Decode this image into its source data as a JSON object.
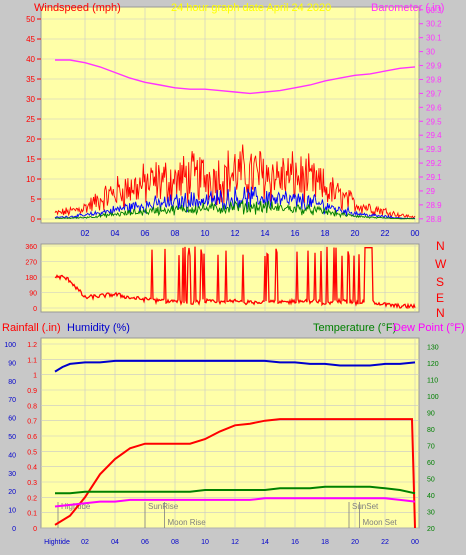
{
  "colors": {
    "background": "#c8c8c8",
    "plot_bg": "#ffffa8",
    "grid": "#c8c8c8",
    "wind": "#ff0000",
    "gust_blue": "#0000ff",
    "gust_green": "#008000",
    "barometer": "#ff33ff",
    "humidity": "#0000cc",
    "temperature": "#008000",
    "dewpoint": "#ff00ff",
    "rain": "#ff0000",
    "title": "#ffff00",
    "event": "#808080"
  },
  "header": {
    "title": "24 hour graph date  April 24 2020"
  },
  "chart_data": [
    {
      "type": "line",
      "panel": "wind-baro",
      "title": "24 hour graph date  April 24 2020",
      "ylabel_left": "Windspeed (mph)",
      "ylabel_right": "Barometer (.in)",
      "x_ticks": [
        "02",
        "04",
        "06",
        "08",
        "10",
        "12",
        "14",
        "16",
        "18",
        "20",
        "22",
        "00"
      ],
      "y_left_ticks": [
        "0",
        "5",
        "10",
        "15",
        "20",
        "25",
        "30",
        "35",
        "40",
        "45",
        "50"
      ],
      "y_left_lim": [
        0,
        50
      ],
      "y_right_ticks": [
        "28.8",
        "28.9",
        "29",
        "29.1",
        "29.2",
        "29.3",
        "29.4",
        "29.5",
        "29.6",
        "29.7",
        "29.8",
        "29.9",
        "30",
        "30.1",
        "30.2",
        "30.3"
      ],
      "y_right_lim": [
        28.77,
        30.32
      ],
      "series": [
        {
          "name": "Barometer",
          "axis": "right",
          "x": [
            0,
            1,
            2,
            3,
            4,
            5,
            6,
            7,
            8,
            9,
            10,
            11,
            12,
            13,
            14,
            15,
            16,
            17,
            18,
            19,
            20,
            21,
            22,
            23,
            24
          ],
          "values": [
            29.94,
            29.94,
            29.92,
            29.89,
            29.85,
            29.81,
            29.78,
            29.76,
            29.74,
            29.73,
            29.73,
            29.72,
            29.71,
            29.7,
            29.71,
            29.72,
            29.74,
            29.76,
            29.79,
            29.81,
            29.83,
            29.84,
            29.86,
            29.88,
            29.89
          ]
        },
        {
          "name": "Wind speed",
          "axis": "left",
          "x": [
            0,
            1,
            2,
            3,
            4,
            5,
            6,
            7,
            8,
            9,
            10,
            11,
            12,
            13,
            14,
            15,
            16,
            17,
            18,
            19,
            20,
            21,
            22,
            23,
            24
          ],
          "values": [
            1.5,
            2,
            3,
            5,
            7,
            8,
            9,
            10,
            10,
            11,
            11,
            11,
            12,
            12,
            12,
            11,
            11,
            10,
            8,
            6,
            4,
            3,
            2,
            1,
            0.5
          ]
        },
        {
          "name": "Average wind",
          "axis": "left",
          "x": [
            0,
            1,
            2,
            3,
            4,
            5,
            6,
            7,
            8,
            9,
            10,
            11,
            12,
            13,
            14,
            15,
            16,
            17,
            18,
            19,
            20,
            21,
            22,
            23,
            24
          ],
          "values": [
            0.5,
            0.8,
            1.2,
            2,
            3,
            4,
            4.5,
            5,
            5.5,
            6,
            6,
            6.5,
            7,
            7,
            7,
            6.5,
            6,
            5.5,
            4.5,
            3,
            2,
            1.2,
            0.8,
            0.3,
            0.2
          ]
        },
        {
          "name": "Min wind",
          "axis": "left",
          "x": [
            0,
            1,
            2,
            3,
            4,
            5,
            6,
            7,
            8,
            9,
            10,
            11,
            12,
            13,
            14,
            15,
            16,
            17,
            18,
            19,
            20,
            21,
            22,
            23,
            24
          ],
          "values": [
            0.2,
            0.3,
            0.5,
            1,
            1.5,
            2,
            2.5,
            3,
            3,
            3.5,
            3.5,
            3.5,
            4,
            4,
            4,
            3.5,
            3.5,
            3,
            2.5,
            1.5,
            1,
            0.5,
            0.3,
            0.1,
            0.1
          ]
        }
      ]
    },
    {
      "type": "line",
      "panel": "wind-direction",
      "y_left_ticks": [
        "0",
        "90",
        "180",
        "270",
        "360"
      ],
      "y_left_lim": [
        0,
        360
      ],
      "y_right_labels": [
        "N",
        "W",
        "S",
        "E",
        "N"
      ],
      "series": [
        {
          "name": "Wind direction",
          "x": [
            0,
            0.5,
            1,
            1.5,
            2,
            3,
            4,
            5,
            6,
            7,
            8,
            9,
            10,
            11,
            12,
            13,
            14,
            15,
            16,
            17,
            18,
            19,
            20,
            21,
            22,
            23,
            24
          ],
          "values": [
            180,
            180,
            160,
            110,
            60,
            70,
            80,
            60,
            50,
            40,
            40,
            30,
            40,
            30,
            40,
            30,
            40,
            30,
            40,
            40,
            30,
            40,
            30,
            40,
            20,
            10,
            10
          ]
        }
      ]
    },
    {
      "type": "line",
      "panel": "temp-rain",
      "ylabel_left_1": "Rainfall (.in)",
      "ylabel_left_2": "Humidity (%)",
      "ylabel_right_1": "Temperature (°F)",
      "ylabel_right_2": "Dew Point (°F)",
      "y_left_ticks_rain": [
        "0",
        "0.1",
        "0.2",
        "0.3",
        "0.4",
        "0.5",
        "0.6",
        "0.7",
        "0.8",
        "0.9",
        "1",
        "1.1",
        "1.2"
      ],
      "y_left_ticks_humidity": [
        "0",
        "10",
        "20",
        "30",
        "40",
        "50",
        "60",
        "70",
        "80",
        "90",
        "100"
      ],
      "y_right_ticks": [
        "20",
        "30",
        "40",
        "50",
        "60",
        "70",
        "80",
        "90",
        "100",
        "110",
        "120",
        "130"
      ],
      "x_ticks": [
        "Hightide",
        "02",
        "04",
        "06",
        "08",
        "10",
        "12",
        "14",
        "16",
        "18",
        "20",
        "22",
        "00"
      ],
      "y_rain_lim": [
        0,
        1.2
      ],
      "y_temp_lim": [
        20,
        135
      ],
      "series": [
        {
          "name": "Humidity",
          "axis": "rain",
          "x": [
            0,
            0.5,
            1,
            2,
            3,
            4,
            5,
            6,
            7,
            8,
            9,
            10,
            11,
            12,
            13,
            14,
            15,
            16,
            17,
            18,
            19,
            20,
            21,
            22,
            23,
            24
          ],
          "values": [
            1.02,
            1.05,
            1.07,
            1.08,
            1.08,
            1.09,
            1.09,
            1.09,
            1.09,
            1.09,
            1.09,
            1.09,
            1.09,
            1.09,
            1.09,
            1.09,
            1.08,
            1.08,
            1.07,
            1.07,
            1.06,
            1.06,
            1.06,
            1.07,
            1.07,
            1.08
          ]
        },
        {
          "name": "Rainfall",
          "axis": "rain",
          "x": [
            0,
            1,
            2,
            3,
            4,
            5,
            6,
            7,
            8,
            9,
            10,
            11,
            12,
            13,
            14,
            15,
            16,
            17,
            18,
            19,
            20,
            21,
            22,
            23,
            23.8,
            24
          ],
          "values": [
            0.02,
            0.08,
            0.2,
            0.35,
            0.45,
            0.52,
            0.55,
            0.55,
            0.55,
            0.55,
            0.58,
            0.63,
            0.67,
            0.68,
            0.7,
            0.71,
            0.71,
            0.71,
            0.71,
            0.71,
            0.71,
            0.71,
            0.71,
            0.71,
            0.71,
            0.0
          ]
        },
        {
          "name": "Temperature",
          "axis": "temp",
          "x": [
            0,
            1,
            2,
            3,
            4,
            5,
            6,
            7,
            8,
            9,
            10,
            11,
            12,
            13,
            14,
            15,
            16,
            17,
            18,
            19,
            20,
            21,
            22,
            23,
            24
          ],
          "values": [
            41,
            41,
            42,
            42,
            42,
            42,
            42,
            42,
            42,
            42,
            43,
            43,
            43,
            43,
            43,
            44,
            44,
            44,
            45,
            45,
            45,
            45,
            44,
            43,
            41
          ]
        },
        {
          "name": "Dew Point",
          "axis": "temp",
          "x": [
            0,
            1,
            2,
            3,
            4,
            5,
            6,
            7,
            8,
            9,
            10,
            11,
            12,
            13,
            14,
            15,
            16,
            17,
            18,
            19,
            20,
            21,
            22,
            23,
            24
          ],
          "values": [
            33,
            34,
            35,
            36,
            36,
            37,
            37,
            37,
            37,
            37,
            37,
            37,
            37,
            37,
            38,
            38,
            38,
            38,
            38,
            38,
            38,
            38,
            38,
            37,
            36
          ]
        }
      ],
      "annotations": [
        {
          "label": "Hightide",
          "x": 0.2,
          "where": "upper"
        },
        {
          "label": "SunRise",
          "x": 6.0,
          "where": "upper"
        },
        {
          "label": "Moon Rise",
          "x": 7.3,
          "where": "lower"
        },
        {
          "label": "SunSet",
          "x": 19.6,
          "where": "upper"
        },
        {
          "label": "Moon Set",
          "x": 20.3,
          "where": "lower"
        }
      ]
    }
  ]
}
